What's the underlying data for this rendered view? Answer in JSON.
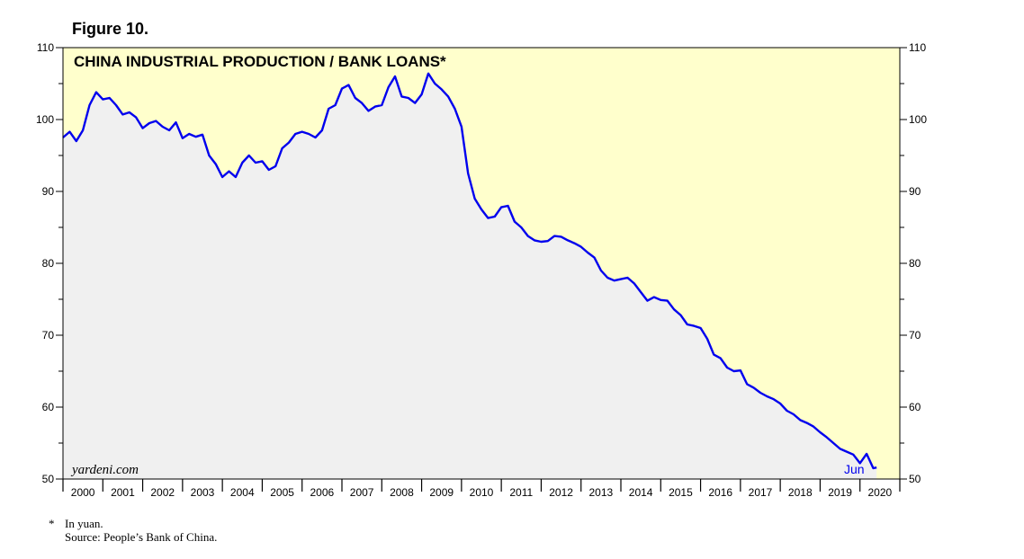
{
  "figure_label": "Figure 10.",
  "watermark": "yardeni.com",
  "end_label": "Jun",
  "footnote": {
    "marker": "*",
    "note": "In yuan.",
    "source": "Source: People’s Bank of China."
  },
  "colors": {
    "plot_background": "#ffffcc",
    "area_fill": "#f0f0f0",
    "line": "#0000ee",
    "axis": "#000000"
  },
  "chart_data": {
    "type": "area",
    "title": "CHINA INDUSTRIAL PRODUCTION / BANK LOANS*",
    "xlabel": "",
    "ylabel": "",
    "ylim": [
      50,
      110
    ],
    "xlim": [
      "2000-01",
      "2020-12"
    ],
    "y_ticks": [
      50,
      60,
      70,
      80,
      90,
      100,
      110
    ],
    "x_ticks": [
      "2000",
      "2001",
      "2002",
      "2003",
      "2004",
      "2005",
      "2006",
      "2007",
      "2008",
      "2009",
      "2010",
      "2011",
      "2012",
      "2013",
      "2014",
      "2015",
      "2016",
      "2017",
      "2018",
      "2019",
      "2020"
    ],
    "series": [
      {
        "values": [
          [
            "2000-01",
            97.5
          ],
          [
            "2000-03",
            98.3
          ],
          [
            "2000-05",
            97.0
          ],
          [
            "2000-07",
            98.5
          ],
          [
            "2000-09",
            102.0
          ],
          [
            "2000-11",
            103.8
          ],
          [
            "2001-01",
            102.8
          ],
          [
            "2001-03",
            103.0
          ],
          [
            "2001-05",
            102.0
          ],
          [
            "2001-07",
            100.7
          ],
          [
            "2001-09",
            101.0
          ],
          [
            "2001-11",
            100.3
          ],
          [
            "2002-01",
            98.8
          ],
          [
            "2002-03",
            99.5
          ],
          [
            "2002-05",
            99.8
          ],
          [
            "2002-07",
            99.0
          ],
          [
            "2002-09",
            98.5
          ],
          [
            "2002-11",
            99.6
          ],
          [
            "2003-01",
            97.4
          ],
          [
            "2003-03",
            98.0
          ],
          [
            "2003-05",
            97.6
          ],
          [
            "2003-07",
            97.9
          ],
          [
            "2003-09",
            95.0
          ],
          [
            "2003-11",
            93.8
          ],
          [
            "2004-01",
            92.0
          ],
          [
            "2004-03",
            92.8
          ],
          [
            "2004-05",
            92.0
          ],
          [
            "2004-07",
            94.0
          ],
          [
            "2004-09",
            95.0
          ],
          [
            "2004-11",
            94.0
          ],
          [
            "2005-01",
            94.2
          ],
          [
            "2005-03",
            93.0
          ],
          [
            "2005-05",
            93.5
          ],
          [
            "2005-07",
            96.0
          ],
          [
            "2005-09",
            96.8
          ],
          [
            "2005-11",
            98.0
          ],
          [
            "2006-01",
            98.3
          ],
          [
            "2006-03",
            98.0
          ],
          [
            "2006-05",
            97.5
          ],
          [
            "2006-07",
            98.5
          ],
          [
            "2006-09",
            101.5
          ],
          [
            "2006-11",
            102.0
          ],
          [
            "2007-01",
            104.3
          ],
          [
            "2007-03",
            104.8
          ],
          [
            "2007-05",
            103.0
          ],
          [
            "2007-07",
            102.3
          ],
          [
            "2007-09",
            101.2
          ],
          [
            "2007-11",
            101.8
          ],
          [
            "2008-01",
            102.0
          ],
          [
            "2008-03",
            104.5
          ],
          [
            "2008-05",
            106.0
          ],
          [
            "2008-07",
            103.2
          ],
          [
            "2008-09",
            103.0
          ],
          [
            "2008-11",
            102.3
          ],
          [
            "2009-01",
            103.5
          ],
          [
            "2009-03",
            106.4
          ],
          [
            "2009-05",
            105.0
          ],
          [
            "2009-07",
            104.2
          ],
          [
            "2009-09",
            103.2
          ],
          [
            "2009-11",
            101.5
          ],
          [
            "2010-01",
            99.0
          ],
          [
            "2010-03",
            92.5
          ],
          [
            "2010-05",
            89.0
          ],
          [
            "2010-07",
            87.5
          ],
          [
            "2010-09",
            86.3
          ],
          [
            "2010-11",
            86.5
          ],
          [
            "2011-01",
            87.8
          ],
          [
            "2011-03",
            88.0
          ],
          [
            "2011-05",
            85.8
          ],
          [
            "2011-07",
            85.0
          ],
          [
            "2011-09",
            83.8
          ],
          [
            "2011-11",
            83.2
          ],
          [
            "2012-01",
            83.0
          ],
          [
            "2012-03",
            83.1
          ],
          [
            "2012-05",
            83.8
          ],
          [
            "2012-07",
            83.7
          ],
          [
            "2012-09",
            83.2
          ],
          [
            "2012-11",
            82.8
          ],
          [
            "2013-01",
            82.3
          ],
          [
            "2013-03",
            81.5
          ],
          [
            "2013-05",
            80.8
          ],
          [
            "2013-07",
            79.0
          ],
          [
            "2013-09",
            78.0
          ],
          [
            "2013-11",
            77.6
          ],
          [
            "2014-01",
            77.8
          ],
          [
            "2014-03",
            78.0
          ],
          [
            "2014-05",
            77.2
          ],
          [
            "2014-07",
            76.0
          ],
          [
            "2014-09",
            74.8
          ],
          [
            "2014-11",
            75.3
          ],
          [
            "2015-01",
            74.9
          ],
          [
            "2015-03",
            74.8
          ],
          [
            "2015-05",
            73.6
          ],
          [
            "2015-07",
            72.8
          ],
          [
            "2015-09",
            71.5
          ],
          [
            "2015-11",
            71.3
          ],
          [
            "2016-01",
            71.0
          ],
          [
            "2016-03",
            69.5
          ],
          [
            "2016-05",
            67.3
          ],
          [
            "2016-07",
            66.8
          ],
          [
            "2016-09",
            65.5
          ],
          [
            "2016-11",
            65.0
          ],
          [
            "2017-01",
            65.1
          ],
          [
            "2017-03",
            63.2
          ],
          [
            "2017-05",
            62.7
          ],
          [
            "2017-07",
            62.0
          ],
          [
            "2017-09",
            61.5
          ],
          [
            "2017-11",
            61.1
          ],
          [
            "2018-01",
            60.5
          ],
          [
            "2018-03",
            59.5
          ],
          [
            "2018-05",
            59.0
          ],
          [
            "2018-07",
            58.2
          ],
          [
            "2018-09",
            57.8
          ],
          [
            "2018-11",
            57.3
          ],
          [
            "2019-01",
            56.5
          ],
          [
            "2019-03",
            55.8
          ],
          [
            "2019-05",
            55.0
          ],
          [
            "2019-07",
            54.2
          ],
          [
            "2019-09",
            53.8
          ],
          [
            "2019-11",
            53.4
          ],
          [
            "2020-01",
            52.2
          ],
          [
            "2020-03",
            53.5
          ],
          [
            "2020-05",
            51.5
          ],
          [
            "2020-06",
            51.6
          ]
        ]
      }
    ]
  }
}
